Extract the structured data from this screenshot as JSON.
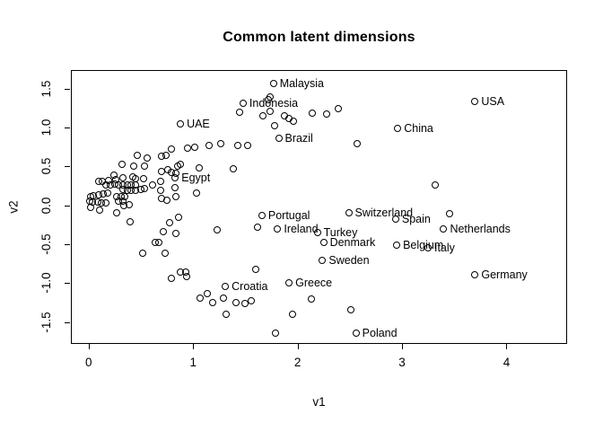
{
  "title": "Common latent dimensions",
  "chart_data": {
    "type": "scatter",
    "title": "Common latent dimensions",
    "xlabel": "v1",
    "ylabel": "v2",
    "xlim": [
      -0.17,
      4.58
    ],
    "ylim": [
      -1.78,
      1.74
    ],
    "grid": false,
    "marker": "open-circle",
    "marker_color": "#000000",
    "background": "#ffffff",
    "x_ticks": [
      {
        "v": 0,
        "label": "0"
      },
      {
        "v": 1,
        "label": "1"
      },
      {
        "v": 2,
        "label": "2"
      },
      {
        "v": 3,
        "label": "3"
      },
      {
        "v": 4,
        "label": "4"
      }
    ],
    "y_ticks": [
      {
        "v": 1.5,
        "label": "1.5"
      },
      {
        "v": 1.0,
        "label": "1.0"
      },
      {
        "v": 0.5,
        "label": "0.5"
      },
      {
        "v": 0.0,
        "label": "0.0"
      },
      {
        "v": -0.5,
        "label": "-0.5"
      },
      {
        "v": -1.0,
        "label": "-1.0"
      },
      {
        "v": -1.5,
        "label": "-1.5"
      }
    ],
    "labeled_points": [
      {
        "label": "Malaysia",
        "x": 1.76,
        "y": 1.58
      },
      {
        "label": "Indonesia",
        "x": 1.47,
        "y": 1.32
      },
      {
        "label": "USA",
        "x": 3.69,
        "y": 1.35
      },
      {
        "label": "UAE",
        "x": 0.87,
        "y": 1.06
      },
      {
        "label": "China",
        "x": 2.95,
        "y": 1.0
      },
      {
        "label": "Brazil",
        "x": 1.81,
        "y": 0.88
      },
      {
        "label": "Egypt",
        "x": 0.82,
        "y": 0.37
      },
      {
        "label": "Switzerland",
        "x": 2.48,
        "y": -0.08
      },
      {
        "label": "Portugal",
        "x": 1.65,
        "y": -0.12
      },
      {
        "label": "Spain",
        "x": 2.93,
        "y": -0.17
      },
      {
        "label": "Netherlands",
        "x": 3.39,
        "y": -0.29
      },
      {
        "label": "Ireland",
        "x": 1.8,
        "y": -0.29
      },
      {
        "label": "Turkey",
        "x": 2.18,
        "y": -0.34
      },
      {
        "label": "Denmark",
        "x": 2.24,
        "y": -0.46
      },
      {
        "label": "Belgium",
        "x": 2.94,
        "y": -0.5
      },
      {
        "label": "Italy",
        "x": 3.24,
        "y": -0.53
      },
      {
        "label": "Sweden",
        "x": 2.23,
        "y": -0.7
      },
      {
        "label": "Germany",
        "x": 3.69,
        "y": -0.88
      },
      {
        "label": "Greece",
        "x": 1.91,
        "y": -0.98
      },
      {
        "label": "Croatia",
        "x": 1.3,
        "y": -1.03
      },
      {
        "label": "Poland",
        "x": 2.55,
        "y": -1.63
      }
    ],
    "points": [
      [
        1.73,
        1.41
      ],
      [
        1.71,
        1.37
      ],
      [
        1.73,
        1.22
      ],
      [
        1.66,
        1.16
      ],
      [
        1.44,
        1.21
      ],
      [
        1.87,
        1.16
      ],
      [
        1.91,
        1.13
      ],
      [
        1.95,
        1.09
      ],
      [
        2.13,
        1.2
      ],
      [
        2.27,
        1.19
      ],
      [
        2.38,
        1.26
      ],
      [
        1.77,
        1.04
      ],
      [
        2.56,
        0.81
      ],
      [
        3.31,
        0.28
      ],
      [
        3.45,
        -0.1
      ],
      [
        0.78,
        0.74
      ],
      [
        0.94,
        0.75
      ],
      [
        1.01,
        0.76
      ],
      [
        1.14,
        0.78
      ],
      [
        1.26,
        0.8
      ],
      [
        1.42,
        0.78
      ],
      [
        1.51,
        0.78
      ],
      [
        0.69,
        0.64
      ],
      [
        0.73,
        0.65
      ],
      [
        0.46,
        0.66
      ],
      [
        0.55,
        0.62
      ],
      [
        0.31,
        0.54
      ],
      [
        0.42,
        0.52
      ],
      [
        0.53,
        0.52
      ],
      [
        0.84,
        0.52
      ],
      [
        0.87,
        0.54
      ],
      [
        0.69,
        0.45
      ],
      [
        0.75,
        0.47
      ],
      [
        0.78,
        0.44
      ],
      [
        0.83,
        0.43
      ],
      [
        1.05,
        0.49
      ],
      [
        1.38,
        0.48
      ],
      [
        0.23,
        0.4
      ],
      [
        0.18,
        0.33
      ],
      [
        0.25,
        0.34
      ],
      [
        0.32,
        0.37
      ],
      [
        0.41,
        0.38
      ],
      [
        0.44,
        0.36
      ],
      [
        0.52,
        0.35
      ],
      [
        0.68,
        0.32
      ],
      [
        0.09,
        0.32
      ],
      [
        0.12,
        0.32
      ],
      [
        0.16,
        0.28
      ],
      [
        0.2,
        0.28
      ],
      [
        0.24,
        0.29
      ],
      [
        0.28,
        0.27
      ],
      [
        0.32,
        0.28
      ],
      [
        0.36,
        0.27
      ],
      [
        0.4,
        0.28
      ],
      [
        0.44,
        0.27
      ],
      [
        0.32,
        0.22
      ],
      [
        0.36,
        0.21
      ],
      [
        0.4,
        0.21
      ],
      [
        0.44,
        0.21
      ],
      [
        0.49,
        0.22
      ],
      [
        0.53,
        0.23
      ],
      [
        0.6,
        0.27
      ],
      [
        0.68,
        0.2
      ],
      [
        0.82,
        0.24
      ],
      [
        1.02,
        0.17
      ],
      [
        0.01,
        0.12
      ],
      [
        0.04,
        0.14
      ],
      [
        0.09,
        0.15
      ],
      [
        0.13,
        0.16
      ],
      [
        0.17,
        0.17
      ],
      [
        0.26,
        0.12
      ],
      [
        0.3,
        0.12
      ],
      [
        0.34,
        0.12
      ],
      [
        0.28,
        0.07
      ],
      [
        0.32,
        0.07
      ],
      [
        0.0,
        0.07
      ],
      [
        0.03,
        0.06
      ],
      [
        0.08,
        0.06
      ],
      [
        0.11,
        0.04
      ],
      [
        0.16,
        0.04
      ],
      [
        0.33,
        0.01
      ],
      [
        0.38,
        0.02
      ],
      [
        0.69,
        0.1
      ],
      [
        0.74,
        0.08
      ],
      [
        0.83,
        0.12
      ],
      [
        0.01,
        -0.01
      ],
      [
        0.1,
        -0.05
      ],
      [
        0.26,
        -0.08
      ],
      [
        0.39,
        -0.2
      ],
      [
        0.77,
        -0.21
      ],
      [
        0.85,
        -0.14
      ],
      [
        0.71,
        -0.33
      ],
      [
        0.83,
        -0.35
      ],
      [
        1.22,
        -0.3
      ],
      [
        0.63,
        -0.47
      ],
      [
        0.66,
        -0.46
      ],
      [
        0.51,
        -0.6
      ],
      [
        0.72,
        -0.6
      ],
      [
        1.61,
        -0.27
      ],
      [
        1.59,
        -0.81
      ],
      [
        0.87,
        -0.84
      ],
      [
        0.92,
        -0.85
      ],
      [
        0.93,
        -0.9
      ],
      [
        0.78,
        -0.93
      ],
      [
        1.06,
        -1.18
      ],
      [
        1.13,
        -1.12
      ],
      [
        1.18,
        -1.24
      ],
      [
        1.28,
        -1.18
      ],
      [
        1.4,
        -1.24
      ],
      [
        1.49,
        -1.25
      ],
      [
        1.55,
        -1.21
      ],
      [
        1.31,
        -1.39
      ],
      [
        1.94,
        -1.39
      ],
      [
        2.12,
        -1.19
      ],
      [
        2.5,
        -1.33
      ],
      [
        1.78,
        -1.63
      ]
    ]
  }
}
